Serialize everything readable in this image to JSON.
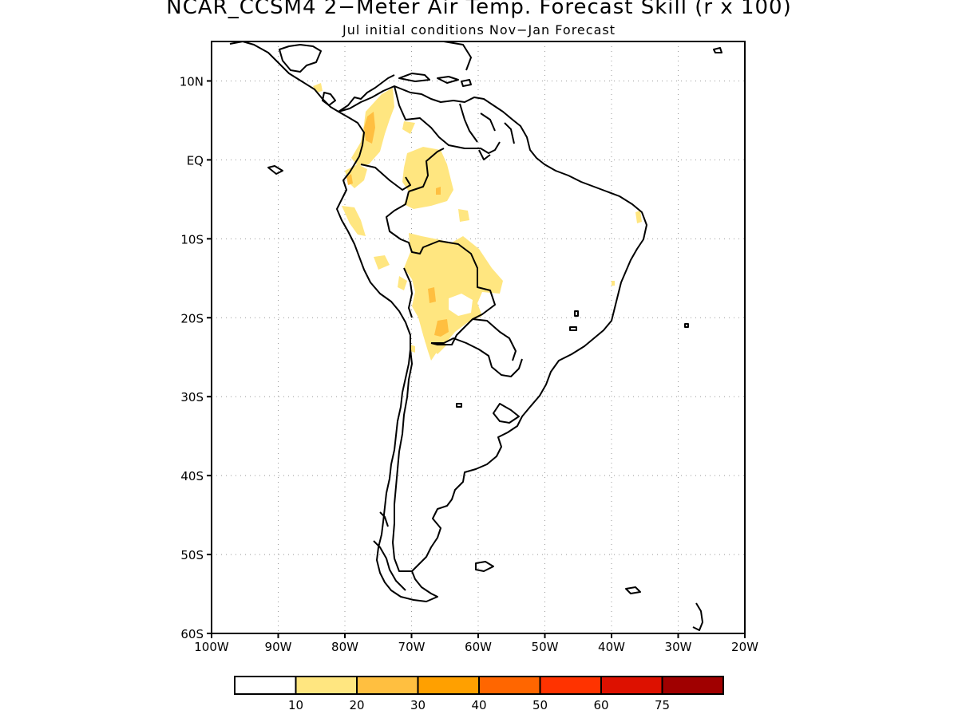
{
  "title": "NCAR_CCSM4 2−Meter Air Temp. Forecast Skill (r x 100)",
  "subtitle": "Jul initial conditions   Nov−Jan Forecast",
  "map": {
    "lon_range": [
      -100,
      -20
    ],
    "lat_range": [
      -60,
      15
    ],
    "lat_ticks": [
      {
        "value": 10,
        "label": "10N"
      },
      {
        "value": 0,
        "label": "EQ"
      },
      {
        "value": -10,
        "label": "10S"
      },
      {
        "value": -20,
        "label": "20S"
      },
      {
        "value": -30,
        "label": "30S"
      },
      {
        "value": -40,
        "label": "40S"
      },
      {
        "value": -50,
        "label": "50S"
      },
      {
        "value": -60,
        "label": "60S"
      }
    ],
    "lon_ticks": [
      {
        "value": -100,
        "label": "100W"
      },
      {
        "value": -90,
        "label": "90W"
      },
      {
        "value": -80,
        "label": "80W"
      },
      {
        "value": -70,
        "label": "70W"
      },
      {
        "value": -60,
        "label": "60W"
      },
      {
        "value": -50,
        "label": "50W"
      },
      {
        "value": -40,
        "label": "40W"
      },
      {
        "value": -30,
        "label": "30W"
      },
      {
        "value": -20,
        "label": "20W"
      }
    ],
    "grid": "dotted"
  },
  "legend": {
    "colors": [
      "#ffffff",
      "#ffe680",
      "#ffbf40",
      "#ffa000",
      "#ff6600",
      "#ff3300",
      "#dd1100",
      "#a00000"
    ],
    "labels": [
      "10",
      "20",
      "30",
      "40",
      "50",
      "60",
      "75"
    ]
  },
  "colors": {
    "skill_10_20": "#ffe680",
    "skill_20_30": "#ffbf40",
    "coastline": "#000000"
  }
}
